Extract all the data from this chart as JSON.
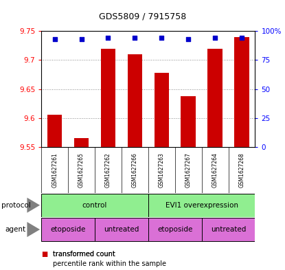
{
  "title": "GDS5809 / 7915758",
  "samples": [
    "GSM1627261",
    "GSM1627265",
    "GSM1627262",
    "GSM1627266",
    "GSM1627263",
    "GSM1627267",
    "GSM1627264",
    "GSM1627268"
  ],
  "bar_values": [
    9.606,
    9.566,
    9.72,
    9.71,
    9.678,
    9.638,
    9.72,
    9.74
  ],
  "percentile_values": [
    93,
    93,
    94,
    94,
    94,
    93,
    94,
    94
  ],
  "ymin": 9.55,
  "ymax": 9.75,
  "y_ticks": [
    9.55,
    9.6,
    9.65,
    9.7,
    9.75
  ],
  "y2_ticks": [
    0,
    25,
    50,
    75,
    100
  ],
  "bar_color": "#cc0000",
  "dot_color": "#0000cc",
  "protocol_color": "#90ee90",
  "agent_color": "#da70d6",
  "sample_bg_color": "#c8c8c8",
  "background_color": "#ffffff",
  "title_fontsize": 9,
  "tick_fontsize": 7.5,
  "label_fontsize": 7.5,
  "row_fontsize": 7.5,
  "legend_fontsize": 7,
  "bar_width": 0.55
}
